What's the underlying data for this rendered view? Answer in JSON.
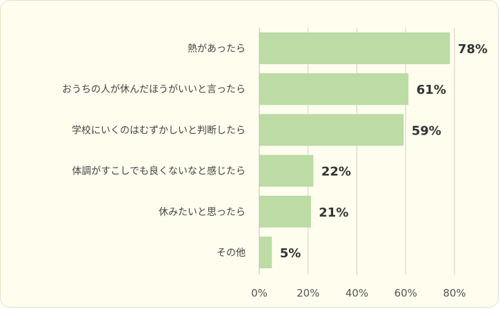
{
  "chart_data": {
    "type": "bar",
    "orientation": "horizontal",
    "categories": [
      "熱があったら",
      "おうちの人が休んだほうがいいと言ったら",
      "学校にいくのはむずかしいと判断したら",
      "体調がすこしでも良くないなと感じたら",
      "休みたいと思ったら",
      "その他"
    ],
    "values": [
      78,
      61,
      59,
      22,
      21,
      5
    ],
    "value_labels": [
      "78%",
      "61%",
      "59%",
      "22%",
      "21%",
      "5%"
    ],
    "xlim": [
      0,
      80
    ],
    "xticks": [
      0,
      20,
      40,
      60,
      80
    ],
    "xtick_labels": [
      "0%",
      "20%",
      "40%",
      "60%",
      "80%"
    ],
    "grid": true,
    "legend": "none",
    "bar_color": "#bcdba5"
  }
}
